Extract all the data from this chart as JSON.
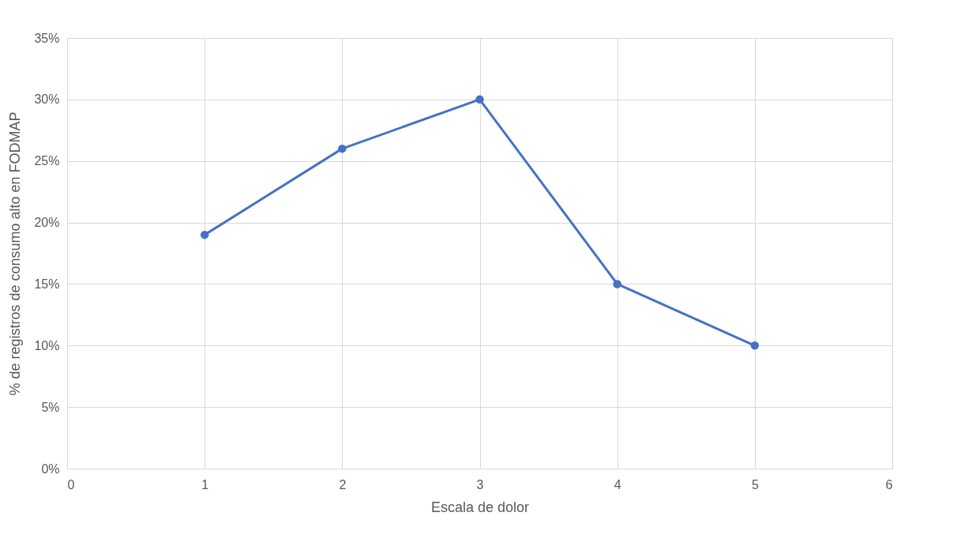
{
  "chart_data": {
    "type": "line",
    "xlabel": "Escala de dolor",
    "ylabel": "% de registros de consumo alto en FODMAP",
    "x": [
      1,
      2,
      3,
      4,
      5
    ],
    "series": [
      {
        "color": "#4472c4",
        "values": [
          19,
          26,
          30,
          15,
          10
        ]
      }
    ],
    "xlim": [
      0,
      6
    ],
    "xticks": [
      0,
      1,
      2,
      3,
      4,
      5,
      6
    ],
    "ylim": [
      0,
      35
    ],
    "yticks": [
      {
        "value": 0,
        "label": "0%"
      },
      {
        "value": 5,
        "label": "5%"
      },
      {
        "value": 10,
        "label": "10%"
      },
      {
        "value": 15,
        "label": "15%"
      },
      {
        "value": 20,
        "label": "20%"
      },
      {
        "value": 25,
        "label": "25%"
      },
      {
        "value": 30,
        "label": "30%"
      },
      {
        "value": 35,
        "label": "35%"
      }
    ],
    "grid": true,
    "marker": "circle",
    "line_style": "solid"
  }
}
